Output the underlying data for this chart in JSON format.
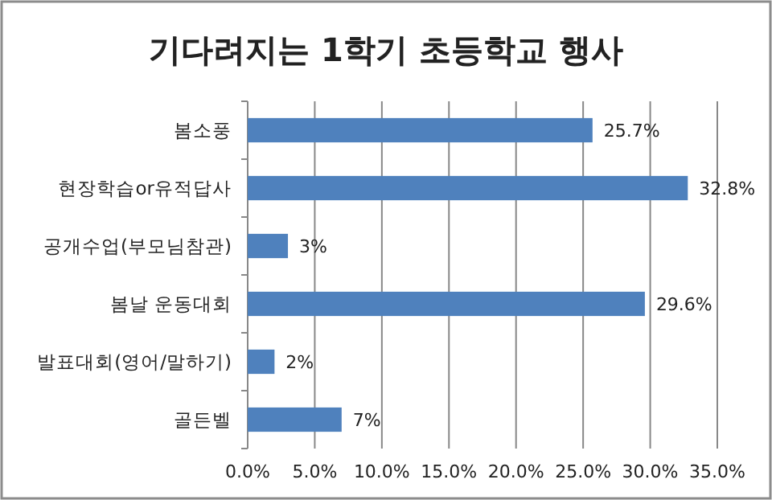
{
  "chart_data": {
    "type": "bar",
    "orientation": "horizontal",
    "title": "기다려지는 1학기 초등학교 행사",
    "categories": [
      "봄소풍",
      "현장학습or유적답사",
      "공개수업(부모님참관)",
      "봄날 운동대회",
      "발표대회(영어/말하기)",
      "골든벨"
    ],
    "values": [
      25.7,
      32.8,
      3,
      29.6,
      2,
      7
    ],
    "value_labels": [
      "25.7%",
      "32.8%",
      "3%",
      "29.6%",
      "2%",
      "7%"
    ],
    "color": "#4f81bd",
    "xlim": [
      0,
      35
    ],
    "xticks": [
      {
        "value": 0,
        "label": "0.0%"
      },
      {
        "value": 5,
        "label": "5.0%"
      },
      {
        "value": 10,
        "label": "10.0%"
      },
      {
        "value": 15,
        "label": "15.0%"
      },
      {
        "value": 20,
        "label": "20.0%"
      },
      {
        "value": 25,
        "label": "25.0%"
      },
      {
        "value": 30,
        "label": "30.0%"
      },
      {
        "value": 35,
        "label": "35.0%"
      }
    ],
    "grid": "x"
  }
}
